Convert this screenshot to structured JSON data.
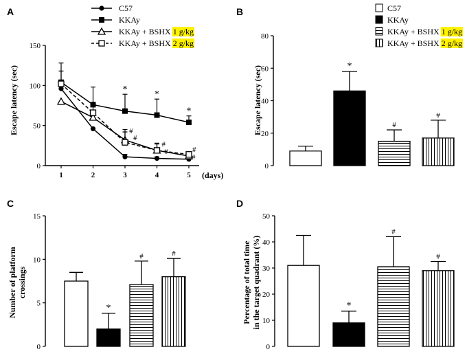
{
  "figure": {
    "colors": {
      "black": "#000000",
      "white": "#ffffff",
      "highlight": "#fff200"
    }
  },
  "chart_data": [
    {
      "panel": "A",
      "type": "line",
      "ylabel": "Escape latency (sec)",
      "xlabel": "(days)",
      "x": [
        1,
        2,
        3,
        4,
        5
      ],
      "xticks": [
        "1",
        "2",
        "3",
        "4",
        "5"
      ],
      "ylim": [
        0,
        150
      ],
      "yticks": [
        0,
        50,
        100,
        150
      ],
      "series": [
        {
          "name": "C57",
          "marker": "circle",
          "dash": false,
          "values": [
            96,
            46,
            11,
            9,
            8
          ],
          "errors": [
            0,
            0,
            3,
            2,
            2
          ]
        },
        {
          "name": "KKAy",
          "marker": "square",
          "dash": false,
          "values": [
            104,
            76,
            68,
            63,
            54
          ],
          "errors": [
            24,
            22,
            21,
            20,
            8
          ]
        },
        {
          "name": "KKAy + BSHX 1 g/kg",
          "marker": "triangle",
          "dash": false,
          "values": [
            80,
            60,
            32,
            19,
            12
          ],
          "errors": [
            0,
            0,
            13,
            8,
            4
          ]
        },
        {
          "name": "KKAy + BSHX 2 g/kg",
          "marker": "square-open",
          "dash": true,
          "values": [
            102,
            66,
            29,
            19,
            14
          ],
          "errors": [
            16,
            13,
            13,
            9,
            3
          ]
        }
      ],
      "legend": [
        {
          "base": "C57",
          "dose": ""
        },
        {
          "base": "KKAy",
          "dose": ""
        },
        {
          "base": "KKAy + BSHX ",
          "dose": "1 g/kg"
        },
        {
          "base": "KKAy + BSHX ",
          "dose": "2 g/kg"
        }
      ],
      "annotations": [
        {
          "x": 3,
          "text": "*",
          "series": "KKAy"
        },
        {
          "x": 4,
          "text": "*",
          "series": "KKAy"
        },
        {
          "x": 5,
          "text": "*",
          "series": "KKAy"
        },
        {
          "x": 3,
          "text": "#"
        },
        {
          "x": 3,
          "text": "#"
        },
        {
          "x": 4,
          "text": "#"
        },
        {
          "x": 4,
          "text": "#"
        },
        {
          "x": 5,
          "text": "#"
        },
        {
          "x": 5,
          "text": "#"
        }
      ]
    },
    {
      "panel": "B",
      "type": "bar",
      "ylabel": "Escape latency (sec)",
      "categories": [
        "C57",
        "KKAy",
        "KKAy + BSHX 1 g/kg",
        "KKAy + BSHX 2 g/kg"
      ],
      "values": [
        9,
        46,
        15,
        17
      ],
      "errors": [
        3,
        12,
        7,
        11
      ],
      "ylim": [
        0,
        80
      ],
      "yticks": [
        0,
        20,
        40,
        60,
        80
      ],
      "marks": [
        "",
        "*",
        "#",
        "#"
      ],
      "legend": [
        {
          "base": "C57",
          "dose": ""
        },
        {
          "base": "KKAy",
          "dose": ""
        },
        {
          "base": "KKAy + BSHX ",
          "dose": "1 g/kg"
        },
        {
          "base": "KKAy + BSHX ",
          "dose": "2 g/kg"
        }
      ]
    },
    {
      "panel": "C",
      "type": "bar",
      "ylabel": [
        "Number of platform",
        "crossings"
      ],
      "categories": [
        "C57",
        "KKAy",
        "KKAy + BSHX 1 g/kg",
        "KKAy + BSHX 2 g/kg"
      ],
      "values": [
        7.5,
        2,
        7.1,
        8
      ],
      "errors": [
        1,
        1.8,
        2.7,
        2.1
      ],
      "ylim": [
        0,
        15
      ],
      "yticks": [
        0,
        5,
        10,
        15
      ],
      "marks": [
        "",
        "*",
        "#",
        "#"
      ]
    },
    {
      "panel": "D",
      "type": "bar",
      "ylabel": [
        "Percentage of total time",
        "in the target quadrant  (%)"
      ],
      "categories": [
        "C57",
        "KKAy",
        "KKAy + BSHX 1 g/kg",
        "KKAy + BSHX 2 g/kg"
      ],
      "values": [
        31,
        9,
        30.5,
        29
      ],
      "errors": [
        11.5,
        4.5,
        11.5,
        3.5
      ],
      "ylim": [
        0,
        50
      ],
      "yticks": [
        0,
        10,
        20,
        30,
        40,
        50
      ],
      "marks": [
        "",
        "*",
        "#",
        "#"
      ]
    }
  ]
}
